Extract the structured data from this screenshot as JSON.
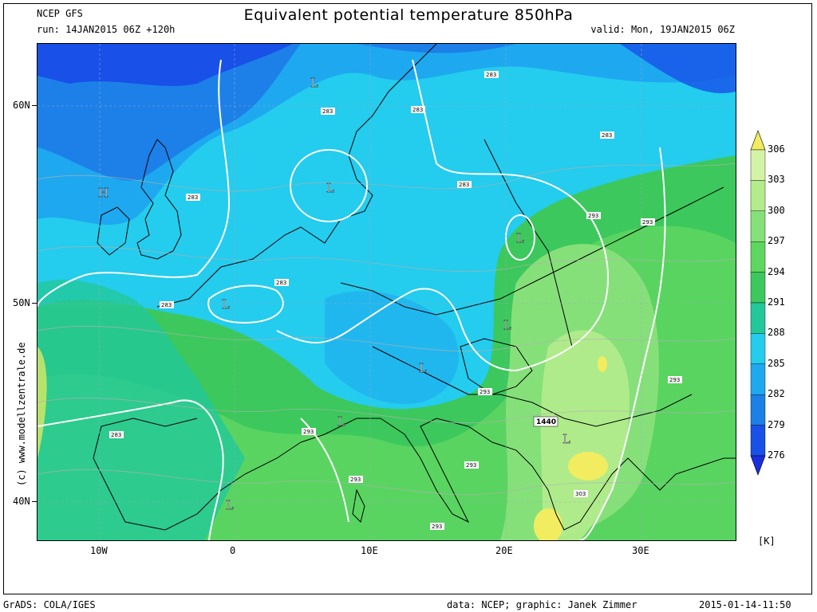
{
  "header": {
    "model": "NCEP GFS",
    "run": "run: 14JAN2015 06Z +120h",
    "title": "Equivalent potential temperature 850hPa",
    "valid": "valid: Mon, 19JAN2015 06Z"
  },
  "axes": {
    "lat_labels": [
      "60N",
      "50N",
      "40N"
    ],
    "lon_labels": [
      "10W",
      "0",
      "10E",
      "20E",
      "30E"
    ]
  },
  "colorbar": {
    "unit": "[K]",
    "levels": [
      "306",
      "303",
      "300",
      "297",
      "294",
      "291",
      "288",
      "285",
      "282",
      "279",
      "276"
    ],
    "colors": [
      "#f2ec60",
      "#d4f2a6",
      "#b4ec8c",
      "#86e07a",
      "#5ed660",
      "#3cc85c",
      "#22c89a",
      "#24ccee",
      "#1ea8f0",
      "#1c80e8",
      "#1850e8",
      "#1a2ee0"
    ]
  },
  "map": {
    "pressure_systems": [
      "H",
      "L",
      "L",
      "L",
      "L",
      "L",
      "L",
      "L",
      "L",
      "L"
    ],
    "contour_labels": [
      "283",
      "283",
      "283",
      "283",
      "283",
      "283",
      "283",
      "283",
      "283",
      "293",
      "293",
      "293",
      "293",
      "293",
      "293",
      "293",
      "293",
      "303"
    ],
    "geopotential_label": "1440"
  },
  "footer": {
    "grads": "GrADS: COLA/IGES",
    "credit": "data: NCEP; graphic: Janek Zimmer",
    "timestamp": "2015-01-14-11:50",
    "watermark": "(c)  www.modellzentrale.de"
  }
}
